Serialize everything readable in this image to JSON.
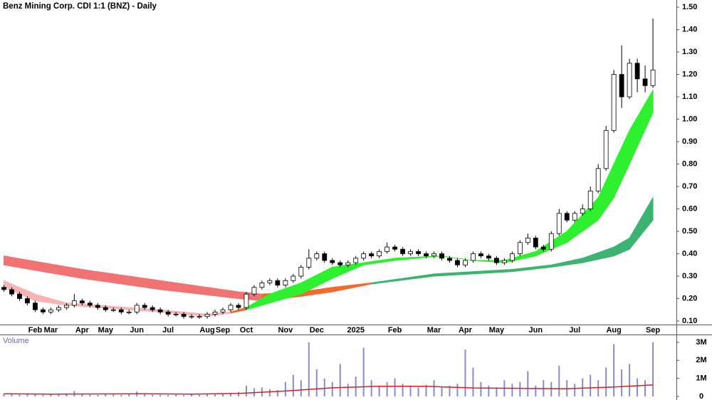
{
  "chart_data": [
    {
      "type": "candlestick",
      "title": "Benz Mining Corp. CDI 1:1 (BNZ) - Daily",
      "categories": [
        null,
        null,
        null,
        null,
        "Feb",
        null,
        "Mar",
        null,
        null,
        null,
        "Apr",
        null,
        null,
        "May",
        null,
        null,
        null,
        "Jun",
        null,
        null,
        null,
        "Jul",
        null,
        null,
        null,
        null,
        "Aug",
        null,
        "Sep",
        null,
        null,
        "Oct",
        null,
        null,
        null,
        null,
        "Nov",
        null,
        null,
        null,
        "Dec",
        null,
        null,
        null,
        null,
        "2025",
        null,
        null,
        null,
        null,
        "Feb",
        null,
        null,
        null,
        null,
        "Mar",
        null,
        null,
        null,
        "Apr",
        null,
        null,
        null,
        "May",
        null,
        null,
        null,
        null,
        "Jun",
        null,
        null,
        null,
        null,
        "Jul",
        null,
        null,
        null,
        null,
        "Aug",
        null,
        null,
        null,
        null,
        "Sep"
      ],
      "open": [
        0.25,
        0.24,
        0.22,
        0.2,
        0.18,
        0.15,
        0.14,
        0.15,
        0.16,
        0.17,
        0.19,
        0.18,
        0.17,
        0.16,
        0.15,
        0.15,
        0.14,
        0.14,
        0.17,
        0.16,
        0.15,
        0.14,
        0.13,
        0.13,
        0.12,
        0.12,
        0.12,
        0.13,
        0.14,
        0.15,
        0.17,
        0.16,
        0.22,
        0.25,
        0.27,
        0.28,
        0.26,
        0.28,
        0.3,
        0.34,
        0.38,
        0.4,
        0.37,
        0.36,
        0.35,
        0.36,
        0.38,
        0.4,
        0.39,
        0.41,
        0.43,
        0.42,
        0.4,
        0.41,
        0.4,
        0.39,
        0.4,
        0.38,
        0.37,
        0.35,
        0.37,
        0.4,
        0.39,
        0.38,
        0.36,
        0.37,
        0.4,
        0.45,
        0.47,
        0.43,
        0.42,
        0.49,
        0.58,
        0.55,
        0.58,
        0.6,
        0.68,
        0.78,
        0.95,
        1.2,
        1.1,
        1.25,
        1.18,
        1.15
      ],
      "high": [
        0.26,
        0.25,
        0.23,
        0.21,
        0.19,
        0.16,
        0.16,
        0.17,
        0.18,
        0.22,
        0.2,
        0.19,
        0.18,
        0.17,
        0.16,
        0.16,
        0.15,
        0.18,
        0.18,
        0.17,
        0.16,
        0.15,
        0.14,
        0.14,
        0.13,
        0.13,
        0.14,
        0.15,
        0.16,
        0.18,
        0.18,
        0.23,
        0.26,
        0.28,
        0.29,
        0.29,
        0.29,
        0.31,
        0.35,
        0.42,
        0.41,
        0.41,
        0.38,
        0.37,
        0.37,
        0.39,
        0.41,
        0.41,
        0.42,
        0.45,
        0.44,
        0.43,
        0.42,
        0.42,
        0.41,
        0.41,
        0.41,
        0.39,
        0.38,
        0.38,
        0.41,
        0.41,
        0.4,
        0.39,
        0.38,
        0.41,
        0.46,
        0.49,
        0.48,
        0.44,
        0.5,
        0.6,
        0.59,
        0.59,
        0.62,
        0.7,
        0.8,
        0.97,
        1.22,
        1.33,
        1.27,
        1.27,
        1.24,
        1.45
      ],
      "low": [
        0.23,
        0.21,
        0.19,
        0.17,
        0.14,
        0.13,
        0.13,
        0.14,
        0.15,
        0.16,
        0.17,
        0.16,
        0.15,
        0.14,
        0.14,
        0.13,
        0.13,
        0.13,
        0.15,
        0.14,
        0.13,
        0.12,
        0.12,
        0.11,
        0.11,
        0.11,
        0.11,
        0.12,
        0.13,
        0.14,
        0.15,
        0.15,
        0.21,
        0.24,
        0.26,
        0.25,
        0.25,
        0.27,
        0.29,
        0.33,
        0.37,
        0.36,
        0.35,
        0.34,
        0.34,
        0.35,
        0.37,
        0.38,
        0.38,
        0.4,
        0.41,
        0.39,
        0.39,
        0.39,
        0.38,
        0.38,
        0.37,
        0.36,
        0.34,
        0.34,
        0.36,
        0.38,
        0.37,
        0.35,
        0.35,
        0.36,
        0.39,
        0.44,
        0.42,
        0.41,
        0.41,
        0.48,
        0.54,
        0.54,
        0.57,
        0.59,
        0.67,
        0.77,
        0.94,
        1.05,
        1.09,
        1.12,
        1.12,
        1.14
      ],
      "close": [
        0.24,
        0.22,
        0.2,
        0.18,
        0.15,
        0.14,
        0.15,
        0.16,
        0.17,
        0.19,
        0.18,
        0.17,
        0.16,
        0.15,
        0.15,
        0.14,
        0.14,
        0.17,
        0.16,
        0.15,
        0.14,
        0.13,
        0.13,
        0.12,
        0.12,
        0.12,
        0.13,
        0.14,
        0.15,
        0.17,
        0.16,
        0.22,
        0.25,
        0.27,
        0.28,
        0.26,
        0.28,
        0.3,
        0.34,
        0.38,
        0.4,
        0.37,
        0.36,
        0.35,
        0.36,
        0.38,
        0.4,
        0.39,
        0.41,
        0.43,
        0.42,
        0.4,
        0.41,
        0.4,
        0.39,
        0.4,
        0.38,
        0.37,
        0.35,
        0.37,
        0.4,
        0.39,
        0.38,
        0.36,
        0.37,
        0.4,
        0.45,
        0.47,
        0.43,
        0.42,
        0.49,
        0.58,
        0.55,
        0.58,
        0.6,
        0.68,
        0.78,
        0.95,
        1.2,
        1.1,
        1.25,
        1.18,
        1.15,
        1.22
      ],
      "up_color": "#ffffff",
      "down_color": "#000000",
      "outline_color": "#000000",
      "ribbons": [
        {
          "color": "#f07272",
          "x": [
            0,
            10,
            20,
            30,
            33
          ],
          "upper": [
            0.39,
            0.33,
            0.28,
            0.23,
            0.22
          ],
          "lower": [
            0.35,
            0.29,
            0.24,
            0.2,
            0.19
          ]
        },
        {
          "color": "#f26a2e",
          "x": [
            33,
            38,
            42,
            47
          ],
          "upper": [
            0.22,
            0.23,
            0.25,
            0.27
          ],
          "lower": [
            0.19,
            0.21,
            0.23,
            0.265
          ]
        },
        {
          "color": "#3cb371",
          "x": [
            47,
            55,
            60,
            65,
            70,
            74,
            78,
            80,
            83
          ],
          "upper": [
            0.27,
            0.31,
            0.32,
            0.33,
            0.35,
            0.38,
            0.43,
            0.47,
            0.65
          ],
          "lower": [
            0.265,
            0.3,
            0.31,
            0.32,
            0.34,
            0.36,
            0.39,
            0.42,
            0.55
          ]
        },
        {
          "color": "#f7b4b4",
          "x": [
            0,
            4,
            8,
            12,
            20,
            26,
            29
          ],
          "upper": [
            0.28,
            0.22,
            0.18,
            0.17,
            0.15,
            0.13,
            0.14
          ],
          "lower": [
            0.25,
            0.19,
            0.17,
            0.16,
            0.14,
            0.12,
            0.135
          ]
        },
        {
          "color": "#f26a2e",
          "x": [
            29,
            31
          ],
          "upper": [
            0.14,
            0.16
          ],
          "lower": [
            0.135,
            0.15
          ]
        },
        {
          "color": "#2ef02e",
          "x": [
            31,
            34,
            38,
            42,
            46,
            50,
            56,
            60,
            64,
            68,
            72,
            76,
            78,
            80,
            83
          ],
          "upper": [
            0.16,
            0.22,
            0.27,
            0.34,
            0.36,
            0.38,
            0.39,
            0.37,
            0.37,
            0.41,
            0.5,
            0.65,
            0.8,
            0.95,
            1.13
          ],
          "lower": [
            0.15,
            0.18,
            0.22,
            0.29,
            0.35,
            0.37,
            0.39,
            0.37,
            0.36,
            0.39,
            0.45,
            0.55,
            0.65,
            0.8,
            1.03
          ]
        }
      ],
      "xlim": [
        -0.5,
        86
      ],
      "ylim": [
        0.084,
        1.532
      ],
      "yticks": [
        {
          "value": 0.1,
          "label": "0.10"
        },
        {
          "value": 0.2,
          "label": "0.20"
        },
        {
          "value": 0.3,
          "label": "0.30"
        },
        {
          "value": 0.4,
          "label": "0.40"
        },
        {
          "value": 0.5,
          "label": "0.50"
        },
        {
          "value": 0.6,
          "label": "0.60"
        },
        {
          "value": 0.7,
          "label": "0.70"
        },
        {
          "value": 0.8,
          "label": "0.80"
        },
        {
          "value": 0.9,
          "label": "0.90"
        },
        {
          "value": 1.0,
          "label": "1.00"
        },
        {
          "value": 1.1,
          "label": "1.10"
        },
        {
          "value": 1.2,
          "label": "1.20"
        },
        {
          "value": 1.3,
          "label": "1.30"
        },
        {
          "value": 1.4,
          "label": "1.40"
        },
        {
          "value": 1.5,
          "label": "1.50"
        }
      ]
    },
    {
      "type": "bar",
      "title": "Volume",
      "color": "#8a8ad0",
      "values": [
        150000,
        120000,
        100000,
        180000,
        130000,
        90000,
        110000,
        140000,
        160000,
        300000,
        120000,
        100000,
        80000,
        150000,
        110000,
        90000,
        120000,
        280000,
        130000,
        100000,
        90000,
        80000,
        100000,
        70000,
        120000,
        90000,
        150000,
        110000,
        130000,
        180000,
        250000,
        600000,
        450000,
        500000,
        400000,
        350000,
        800000,
        1200000,
        900000,
        3000000,
        1500000,
        1000000,
        800000,
        1800000,
        700000,
        1100000,
        2700000,
        900000,
        600000,
        800000,
        1000000,
        700000,
        600000,
        500000,
        650000,
        900000,
        500000,
        600000,
        700000,
        2600000,
        1600000,
        800000,
        600000,
        500000,
        900000,
        700000,
        800000,
        1400000,
        600000,
        900000,
        800000,
        1700000,
        900000,
        700000,
        1000000,
        1200000,
        900000,
        1600000,
        2900000,
        1500000,
        1800000,
        1000000,
        900000,
        3000000
      ],
      "average": {
        "color": "#d42020",
        "x": [
          0,
          6,
          12,
          18,
          24,
          30,
          36,
          42,
          48,
          54,
          60,
          66,
          72,
          78,
          83
        ],
        "values": [
          150000,
          130000,
          140000,
          150000,
          130000,
          170000,
          300000,
          480000,
          560000,
          560000,
          470000,
          450000,
          430000,
          520000,
          640000
        ]
      },
      "xlim": [
        -0.5,
        86
      ],
      "ylim": [
        0,
        3430000
      ],
      "yticks": [
        0,
        {
          "value": 1000000,
          "label": "1M"
        },
        {
          "value": 2000000,
          "label": "2M"
        },
        {
          "value": 3000000,
          "label": "3M"
        }
      ]
    }
  ]
}
